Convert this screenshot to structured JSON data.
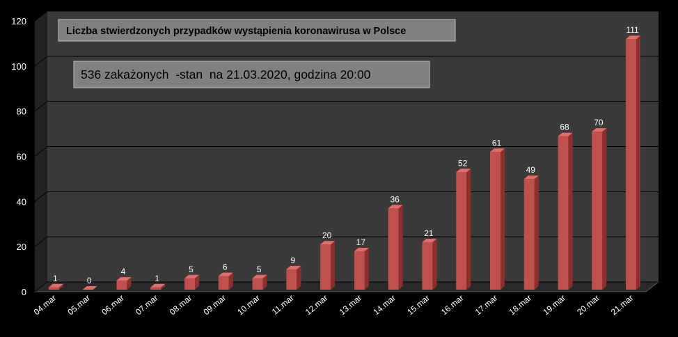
{
  "chart_data": {
    "type": "bar",
    "title": "Liczba stwierdzonych przypadków wystąpienia koronawirusa w Polsce",
    "subtitle": "536 zakażonych  -stan  na 21.03.2020, godzina 20:00",
    "categories": [
      "04.mar",
      "05.mar",
      "06.mar",
      "07.mar",
      "08.mar",
      "09.mar",
      "10.mar",
      "11.mar",
      "12.mar",
      "13.mar",
      "14.mar",
      "15.mar",
      "16.mar",
      "17.mar",
      "18.mar",
      "19.mar",
      "20.mar",
      "21.mar"
    ],
    "values": [
      1,
      0,
      4,
      1,
      5,
      6,
      5,
      9,
      20,
      17,
      36,
      21,
      52,
      61,
      49,
      68,
      70,
      111
    ],
    "ylim": [
      0,
      120
    ],
    "yticks": [
      0,
      20,
      40,
      60,
      80,
      100,
      120
    ],
    "grid": true,
    "xlabel": "",
    "ylabel": "",
    "colors": {
      "background": "#000000",
      "plot_back": "#3a3a3a",
      "plot_floor": "#2a2a2a",
      "plot_side": "#222222",
      "grid": "#000000",
      "bar_front": "#c0504d",
      "bar_side": "#8c2f2d",
      "bar_top": "#d9706d",
      "label_text": "#ffffff",
      "title_box": "#808080"
    }
  }
}
